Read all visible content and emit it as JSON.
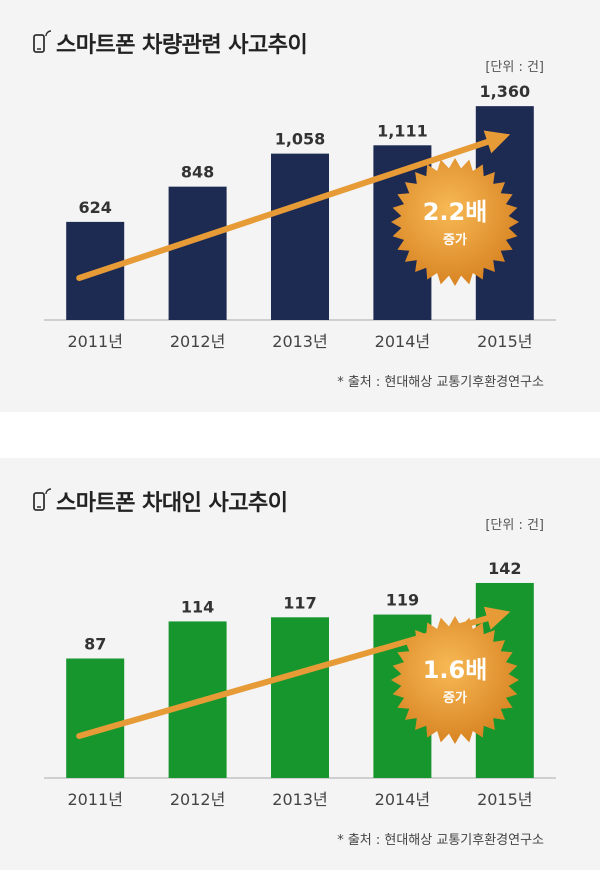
{
  "chart_data": [
    {
      "type": "bar",
      "title": "스마트폰 차량관련 사고추이",
      "unit": "[단위 : 건]",
      "categories": [
        "2011년",
        "2012년",
        "2013년",
        "2014년",
        "2015년"
      ],
      "values": [
        624,
        848,
        1058,
        1111,
        1360
      ],
      "value_labels": [
        "624",
        "848",
        "1,058",
        "1,111",
        "1,360"
      ],
      "ylim": [
        0,
        1450
      ],
      "bar_color": "#1d2a52",
      "trend_color": "#e69b36",
      "growth_value": "2.2배",
      "growth_text": "증가",
      "source": "* 출처 : 현대해상 교통기후환경연구소"
    },
    {
      "type": "bar",
      "title": "스마트폰 차대인 사고추이",
      "unit": "[단위 : 건]",
      "categories": [
        "2011년",
        "2012년",
        "2013년",
        "2014년",
        "2015년"
      ],
      "values": [
        87,
        114,
        117,
        119,
        142
      ],
      "value_labels": [
        "87",
        "114",
        "117",
        "119",
        "142"
      ],
      "ylim": [
        0,
        166
      ],
      "bar_color": "#17962e",
      "trend_color": "#e69b36",
      "growth_value": "1.6배",
      "growth_text": "증가",
      "source": "* 출처 : 현대해상 교통기후환경연구소"
    }
  ]
}
